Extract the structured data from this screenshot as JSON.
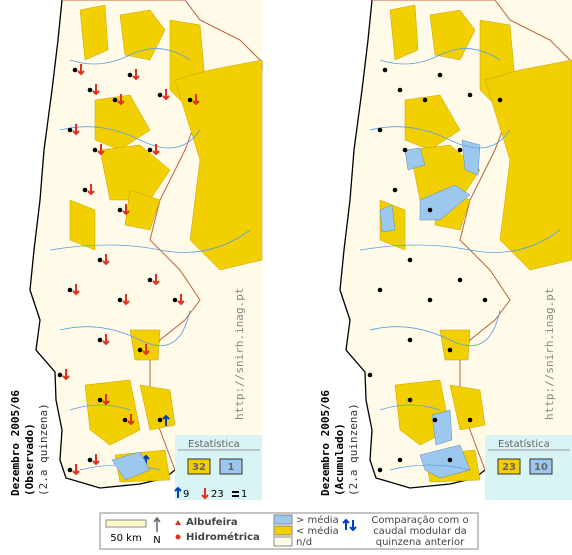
{
  "maps": [
    {
      "title": "Dezembro 2005/06",
      "mode": "(Observado)",
      "period": "(2.a quinzena)",
      "url": "http://snirh.inag.pt",
      "stats": {
        "label": "Estatística",
        "above": 32,
        "below": 1,
        "up": 9,
        "down": 23,
        "equal": 1
      }
    },
    {
      "title": "Dezembro 2005/06",
      "mode": "(Acumulado)",
      "period": "(2.a quinzena)",
      "url": "http://snirh.inag.pt",
      "stats": {
        "label": "Estatística",
        "above": 23,
        "below": 10
      }
    }
  ],
  "legend": {
    "scale": "50 km",
    "north": "N",
    "reservoir": "Albufeira",
    "hydrometric": "Hidrométrica",
    "above": "> média",
    "below": "< média",
    "na": "n/d",
    "comparison": "Comparação com o caudal modular da quinzena anterior"
  }
}
